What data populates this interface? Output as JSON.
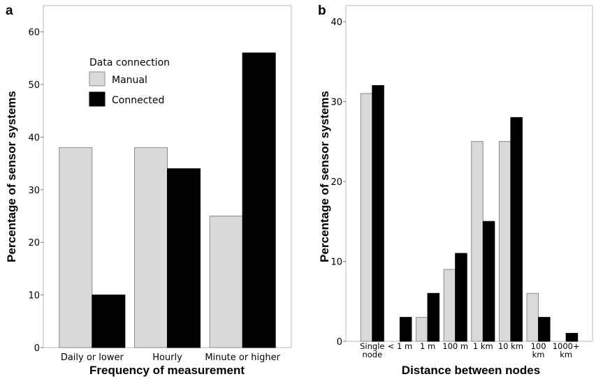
{
  "colors": {
    "manual": "#d9d9d9",
    "connected": "#000000",
    "bar_stroke": "#8c8c8c"
  },
  "chart_data": [
    {
      "panel": "a",
      "type": "bar",
      "xlabel": "Frequency of measurement",
      "ylabel": "Percentage of sensor systems",
      "ylim": [
        0,
        65
      ],
      "yticks": [
        0,
        10,
        20,
        30,
        40,
        50,
        60
      ],
      "grid": false,
      "legend": {
        "title": "Data connection",
        "position": "top-left"
      },
      "categories": [
        [
          "Daily or lower"
        ],
        [
          "Hourly"
        ],
        [
          "Minute or higher"
        ]
      ],
      "series": [
        {
          "name": "Manual",
          "color": "#d9d9d9",
          "values": [
            38,
            38,
            25
          ]
        },
        {
          "name": "Connected",
          "color": "#000000",
          "values": [
            10,
            34,
            56
          ]
        }
      ]
    },
    {
      "panel": "b",
      "type": "bar",
      "xlabel": "Distance between nodes",
      "ylabel": "Percentage of sensor systems",
      "ylim": [
        0,
        42
      ],
      "yticks": [
        0,
        10,
        20,
        30,
        40
      ],
      "grid": false,
      "categories": [
        [
          "Single",
          "node"
        ],
        [
          "< 1 m"
        ],
        [
          "1 m"
        ],
        [
          "100 m"
        ],
        [
          "1 km"
        ],
        [
          "10 km"
        ],
        [
          "100",
          "km"
        ],
        [
          "1000+",
          "km"
        ]
      ],
      "series": [
        {
          "name": "Manual",
          "color": "#d9d9d9",
          "values": [
            31,
            0,
            3,
            9,
            25,
            25,
            6,
            0
          ]
        },
        {
          "name": "Connected",
          "color": "#000000",
          "values": [
            32,
            3,
            6,
            11,
            15,
            28,
            3,
            1
          ]
        }
      ]
    }
  ]
}
